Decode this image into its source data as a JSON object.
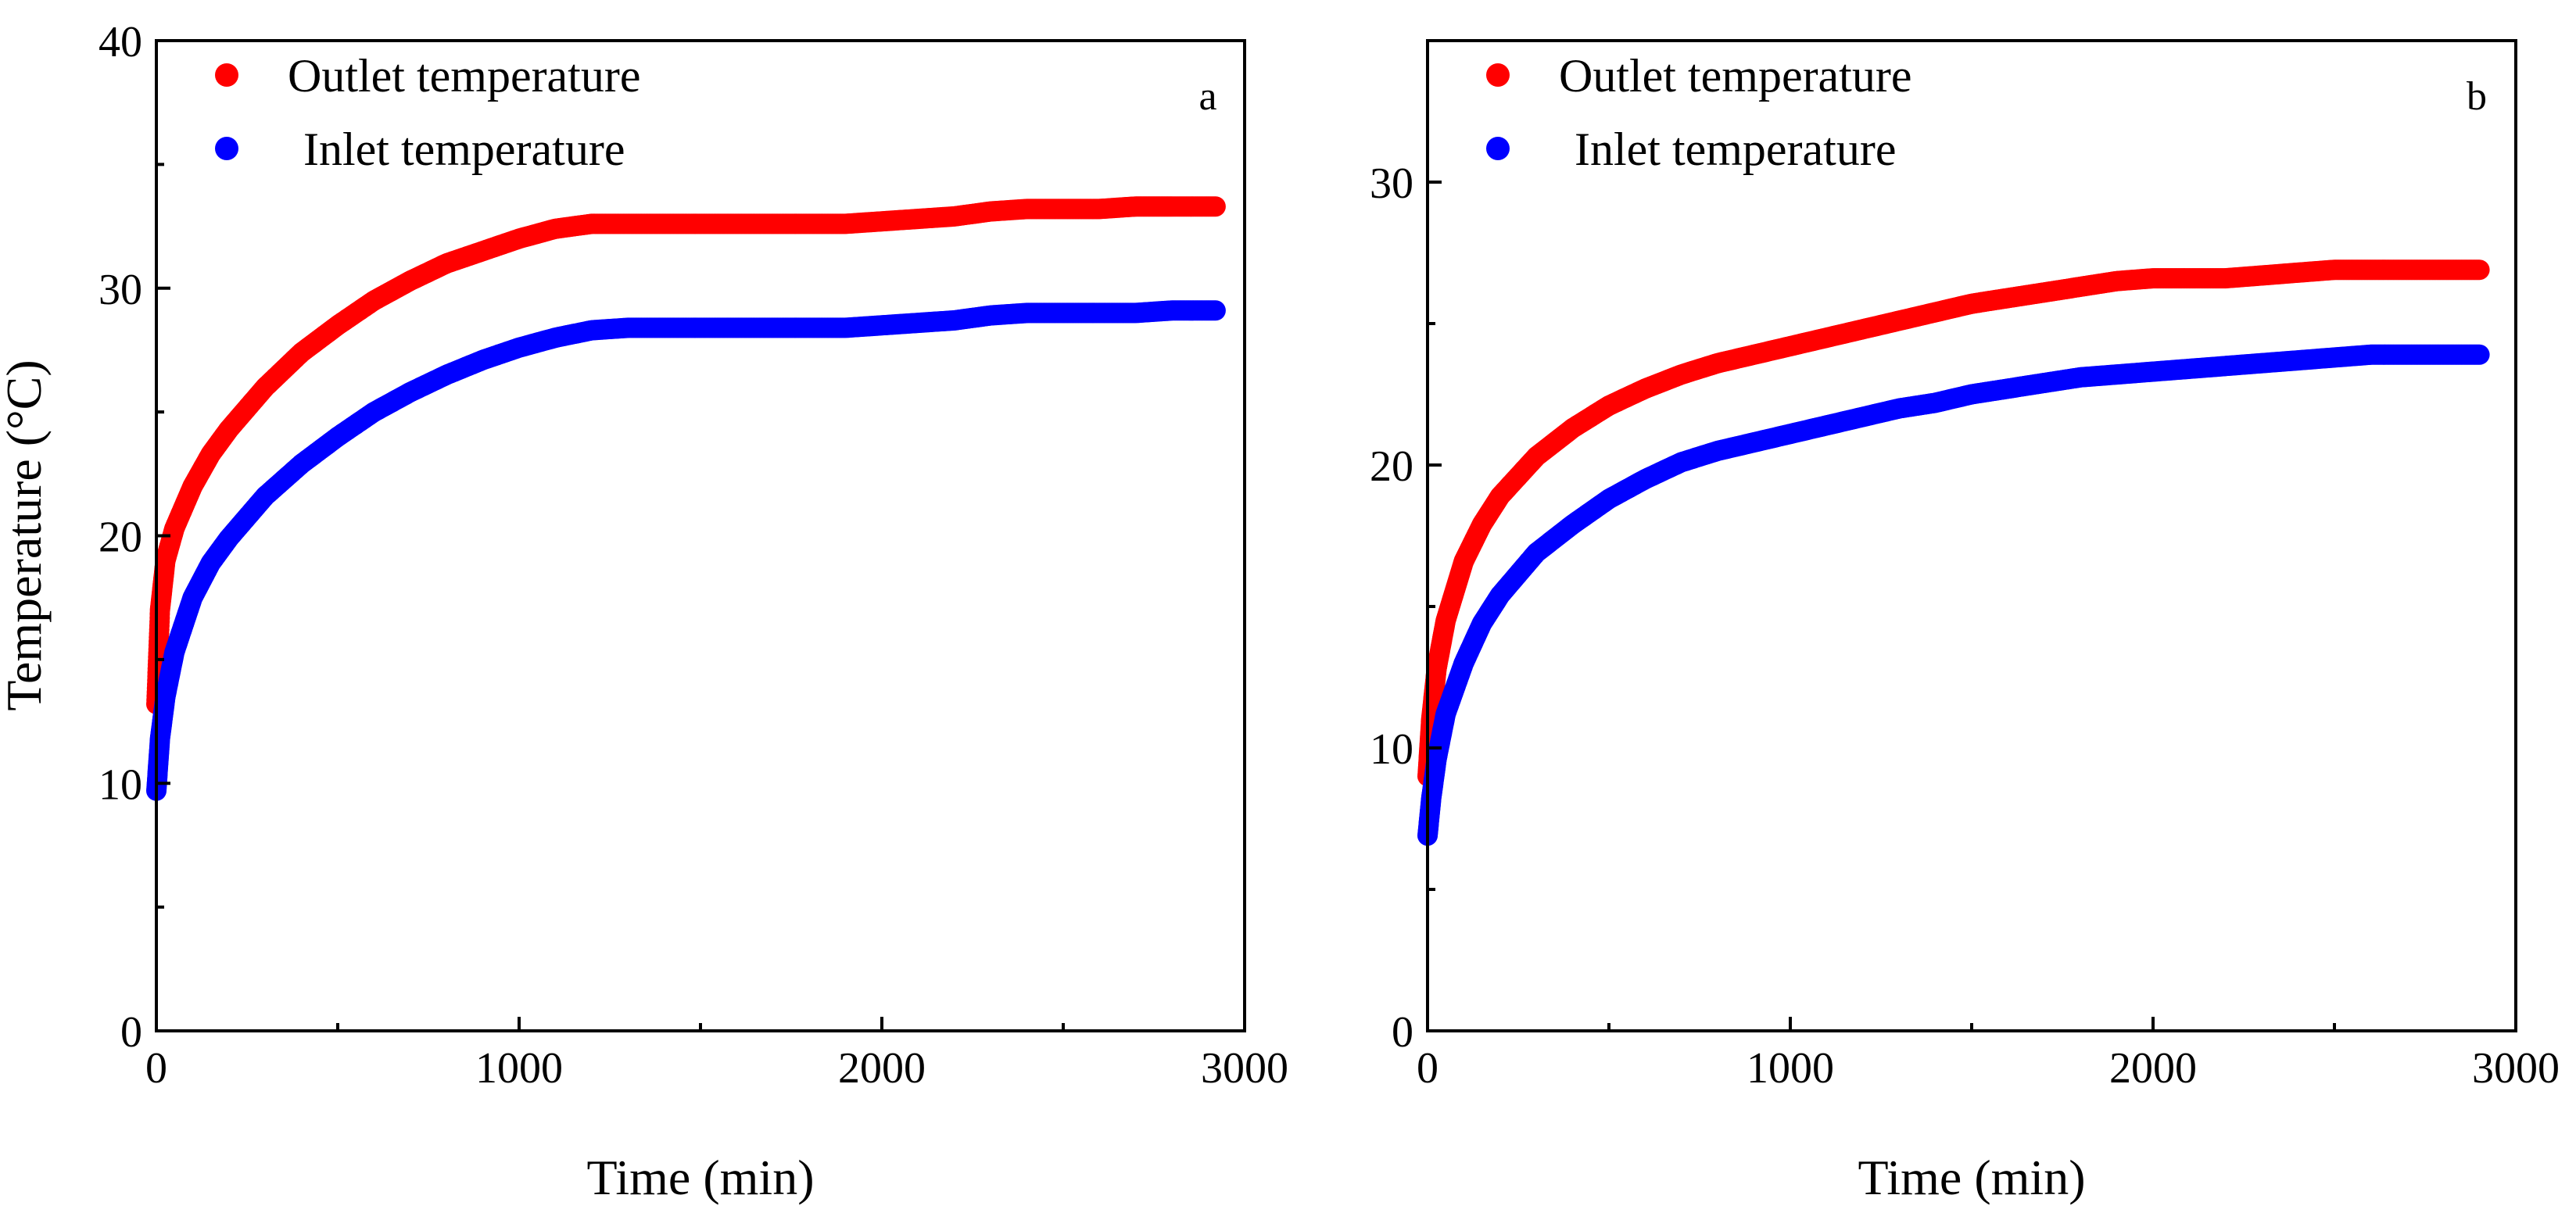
{
  "chart_data": [
    {
      "type": "scatter",
      "panel_label": "a",
      "xlabel": "Time (min)",
      "ylabel": "Temperature (°C)",
      "xlim": [
        0,
        3000
      ],
      "ylim": [
        0,
        40
      ],
      "x_ticks": [
        0,
        1000,
        2000,
        3000
      ],
      "y_ticks": [
        0,
        10,
        20,
        30,
        40
      ],
      "x_tick_labels": [
        "0",
        "1000",
        "2000",
        "3000"
      ],
      "y_tick_labels": [
        "0",
        "10",
        "20",
        "30",
        "40"
      ],
      "legend_position": "top-left",
      "series": [
        {
          "name": "Outlet temperature",
          "color": "#ff0000",
          "x": [
            0,
            10,
            25,
            50,
            100,
            150,
            200,
            300,
            400,
            500,
            600,
            700,
            800,
            900,
            1000,
            1100,
            1200,
            1300,
            1400,
            1500,
            1600,
            1700,
            1800,
            1900,
            2000,
            2100,
            2200,
            2300,
            2400,
            2500,
            2600,
            2700,
            2800,
            2920
          ],
          "y": [
            13.2,
            17.0,
            19.0,
            20.3,
            22.0,
            23.3,
            24.3,
            26.0,
            27.4,
            28.5,
            29.5,
            30.3,
            31.0,
            31.5,
            32.0,
            32.4,
            32.6,
            32.6,
            32.6,
            32.6,
            32.6,
            32.6,
            32.6,
            32.6,
            32.7,
            32.8,
            32.9,
            33.1,
            33.2,
            33.2,
            33.2,
            33.3,
            33.3,
            33.3
          ]
        },
        {
          "name": "Inlet temperature",
          "color": "#0000ff",
          "x": [
            0,
            10,
            25,
            50,
            100,
            150,
            200,
            300,
            400,
            500,
            600,
            700,
            800,
            900,
            1000,
            1100,
            1200,
            1300,
            1400,
            1500,
            1600,
            1700,
            1800,
            1900,
            2000,
            2100,
            2200,
            2300,
            2400,
            2500,
            2600,
            2700,
            2800,
            2920
          ],
          "y": [
            9.7,
            11.8,
            13.5,
            15.3,
            17.5,
            18.9,
            19.9,
            21.6,
            22.9,
            24.0,
            25.0,
            25.8,
            26.5,
            27.1,
            27.6,
            28.0,
            28.3,
            28.4,
            28.4,
            28.4,
            28.4,
            28.4,
            28.4,
            28.4,
            28.5,
            28.6,
            28.7,
            28.9,
            29.0,
            29.0,
            29.0,
            29.0,
            29.1,
            29.1
          ]
        }
      ]
    },
    {
      "type": "scatter",
      "panel_label": "b",
      "xlabel": "Time (min)",
      "ylabel": "",
      "xlim": [
        0,
        3000
      ],
      "ylim": [
        0,
        35
      ],
      "x_ticks": [
        0,
        1000,
        2000,
        3000
      ],
      "y_ticks": [
        0,
        10,
        20,
        30
      ],
      "x_tick_labels": [
        "0",
        "1000",
        "2000",
        "3000"
      ],
      "y_tick_labels": [
        "0",
        "10",
        "20",
        "30"
      ],
      "legend_position": "top-left",
      "series": [
        {
          "name": "Outlet temperature",
          "color": "#ff0000",
          "x": [
            0,
            10,
            25,
            50,
            100,
            150,
            200,
            300,
            400,
            500,
            600,
            700,
            800,
            900,
            1000,
            1100,
            1200,
            1300,
            1400,
            1500,
            1600,
            1700,
            1800,
            1900,
            2000,
            2100,
            2200,
            2300,
            2400,
            2500,
            2600,
            2700,
            2800,
            2900
          ],
          "y": [
            9.0,
            11.0,
            12.8,
            14.5,
            16.6,
            17.9,
            18.9,
            20.3,
            21.3,
            22.1,
            22.7,
            23.2,
            23.6,
            23.9,
            24.2,
            24.5,
            24.8,
            25.1,
            25.4,
            25.7,
            25.9,
            26.1,
            26.3,
            26.5,
            26.6,
            26.6,
            26.6,
            26.7,
            26.8,
            26.9,
            26.9,
            26.9,
            26.9,
            26.9
          ]
        },
        {
          "name": "Inlet temperature",
          "color": "#0000ff",
          "x": [
            0,
            10,
            25,
            50,
            100,
            150,
            200,
            300,
            400,
            500,
            600,
            700,
            800,
            900,
            1000,
            1100,
            1200,
            1300,
            1400,
            1500,
            1600,
            1700,
            1800,
            1900,
            2000,
            2100,
            2200,
            2300,
            2400,
            2500,
            2600,
            2700,
            2800,
            2900
          ],
          "y": [
            6.9,
            8.2,
            9.6,
            11.2,
            13.0,
            14.4,
            15.4,
            16.9,
            17.9,
            18.8,
            19.5,
            20.1,
            20.5,
            20.8,
            21.1,
            21.4,
            21.7,
            22.0,
            22.2,
            22.5,
            22.7,
            22.9,
            23.1,
            23.2,
            23.3,
            23.4,
            23.5,
            23.6,
            23.7,
            23.8,
            23.9,
            23.9,
            23.9,
            23.9
          ]
        }
      ]
    }
  ]
}
